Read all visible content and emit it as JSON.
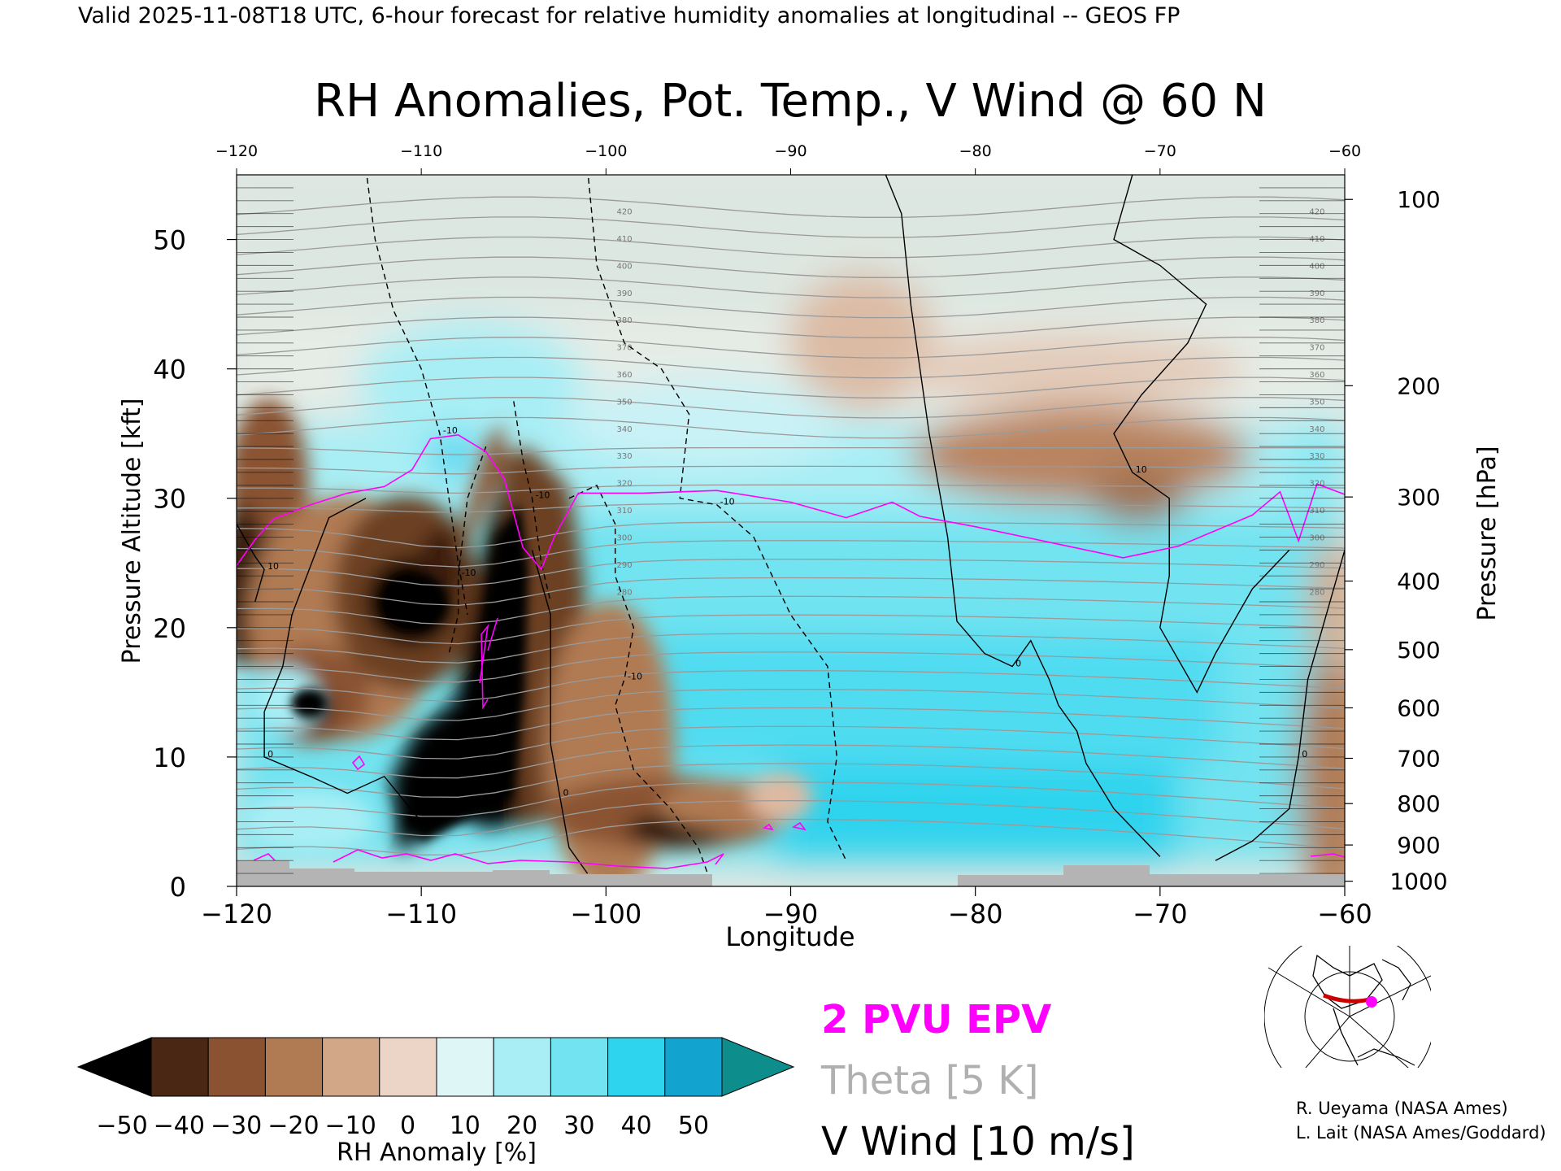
{
  "header_text": "Valid 2025-11-08T18 UTC, 6-hour forecast for relative humidity anomalies at longitudinal -- GEOS FP",
  "chart_data": {
    "type": "heatmap",
    "title": "RH Anomalies, Pot. Temp., V Wind @ 60 N",
    "xlabel": "Longitude",
    "ylabel": "Pressure Altitude [kft]",
    "y2label": "Pressure [hPa]",
    "xlim": [
      -120,
      -60
    ],
    "ylim": [
      0,
      55
    ],
    "x_ticks": [
      -120,
      -110,
      -100,
      -90,
      -80,
      -70,
      -60
    ],
    "y_ticks": [
      0,
      10,
      20,
      30,
      40,
      50
    ],
    "top_ticks": [
      -120,
      -110,
      -100,
      -90,
      -80,
      -70,
      -60
    ],
    "pressure_ticks": [
      {
        "hpa": "100",
        "kft": 53.1
      },
      {
        "hpa": "200",
        "kft": 38.7
      },
      {
        "hpa": "300",
        "kft": 30.1
      },
      {
        "hpa": "400",
        "kft": 23.6
      },
      {
        "hpa": "500",
        "kft": 18.3
      },
      {
        "hpa": "600",
        "kft": 13.8
      },
      {
        "hpa": "700",
        "kft": 9.9
      },
      {
        "hpa": "800",
        "kft": 6.4
      },
      {
        "hpa": "900",
        "kft": 3.2
      },
      {
        "hpa": "1000",
        "kft": 0.4
      }
    ],
    "theta_labels": [
      "420",
      "410",
      "400",
      "390",
      "380",
      "370",
      "360",
      "350",
      "340",
      "330",
      "320",
      "310",
      "300",
      "290",
      "280"
    ],
    "pv2_tropopause": [
      [
        -120,
        24.8
      ],
      [
        -119,
        26.8
      ],
      [
        -118,
        28.4
      ],
      [
        -116,
        29.5
      ],
      [
        -114,
        30.4
      ],
      [
        -112,
        30.9
      ],
      [
        -110.5,
        32.2
      ],
      [
        -109.5,
        34.6
      ],
      [
        -108,
        34.9
      ],
      [
        -106.5,
        33.6
      ],
      [
        -105.5,
        31.5
      ],
      [
        -104.5,
        26.2
      ],
      [
        -103.5,
        24.5
      ],
      [
        -102.8,
        27.0
      ],
      [
        -101.5,
        30.4
      ],
      [
        -98,
        30.4
      ],
      [
        -94,
        30.6
      ],
      [
        -90,
        29.7
      ],
      [
        -87,
        28.5
      ],
      [
        -84.5,
        29.7
      ],
      [
        -83,
        28.6
      ],
      [
        -80,
        27.8
      ],
      [
        -76,
        26.6
      ],
      [
        -72,
        25.4
      ],
      [
        -69,
        26.3
      ],
      [
        -65,
        28.7
      ],
      [
        -63.5,
        30.5
      ],
      [
        -62.5,
        26.7
      ],
      [
        -61.5,
        31.1
      ],
      [
        -60,
        30.3
      ]
    ],
    "vwind_contours": [
      {
        "value": "0",
        "style": "solid",
        "points": [
          [
            -85,
            55.5
          ],
          [
            -84,
            52
          ],
          [
            -83.5,
            45
          ],
          [
            -82.5,
            35
          ],
          [
            -81.5,
            27
          ],
          [
            -81,
            20.5
          ],
          [
            -79.5,
            18
          ],
          [
            -78,
            17
          ],
          [
            -77,
            19
          ],
          [
            -76,
            16
          ],
          [
            -75.5,
            14
          ],
          [
            -74.5,
            12
          ],
          [
            -74,
            9.5
          ],
          [
            -72.5,
            6
          ],
          [
            -70,
            2.3
          ]
        ]
      },
      {
        "value": "0",
        "style": "solid",
        "points": [
          [
            -104,
            26
          ],
          [
            -103,
            21
          ],
          [
            -103,
            11
          ],
          [
            -102.5,
            7
          ],
          [
            -102,
            3
          ],
          [
            -101,
            1
          ]
        ]
      },
      {
        "value": "0",
        "style": "solid",
        "points": [
          [
            -113,
            30
          ],
          [
            -115,
            28.5
          ],
          [
            -117,
            21
          ],
          [
            -117.5,
            17
          ],
          [
            -118.5,
            13.5
          ],
          [
            -118.5,
            10
          ],
          [
            -116,
            8.5
          ],
          [
            -114,
            7.2
          ],
          [
            -112,
            8.5
          ],
          [
            -110,
            5
          ]
        ]
      },
      {
        "value": "10",
        "style": "solid",
        "points": [
          [
            -71.5,
            55
          ],
          [
            -72.5,
            50
          ],
          [
            -70,
            48
          ],
          [
            -67.5,
            45
          ],
          [
            -68.5,
            42
          ],
          [
            -71,
            38
          ],
          [
            -72.5,
            35
          ],
          [
            -71.5,
            32
          ],
          [
            -69.5,
            30
          ],
          [
            -69.5,
            24
          ],
          [
            -70,
            20
          ],
          [
            -68,
            15
          ],
          [
            -67,
            18
          ],
          [
            -65,
            23
          ],
          [
            -63,
            26
          ]
        ]
      },
      {
        "value": "10",
        "style": "solid",
        "points": [
          [
            -120,
            28
          ],
          [
            -119,
            25.5
          ],
          [
            -118.5,
            24.5
          ],
          [
            -119,
            22
          ]
        ]
      },
      {
        "value": "0",
        "style": "solid",
        "points": [
          [
            -60,
            26
          ],
          [
            -61,
            21
          ],
          [
            -62,
            16
          ],
          [
            -62.5,
            10
          ],
          [
            -63,
            6
          ],
          [
            -65,
            3.5
          ],
          [
            -67,
            2
          ]
        ]
      },
      {
        "value": "-10",
        "style": "dashed",
        "points": [
          [
            -113,
            55.5
          ],
          [
            -112.5,
            50
          ],
          [
            -111.5,
            44.5
          ],
          [
            -110,
            40
          ],
          [
            -109,
            35
          ],
          [
            -108.5,
            30
          ],
          [
            -108,
            25
          ],
          [
            -107.5,
            21
          ]
        ]
      },
      {
        "value": "-10",
        "style": "dashed",
        "points": [
          [
            -101,
            55.5
          ],
          [
            -100.5,
            48
          ],
          [
            -99,
            42
          ],
          [
            -97,
            40
          ],
          [
            -95.5,
            36.5
          ],
          [
            -96,
            30
          ],
          [
            -94,
            29.5
          ],
          [
            -92,
            27
          ],
          [
            -90,
            21
          ],
          [
            -88,
            17
          ],
          [
            -87.5,
            10
          ],
          [
            -88,
            5
          ],
          [
            -87,
            2
          ]
        ]
      },
      {
        "value": "-10",
        "style": "dashed",
        "points": [
          [
            -106.5,
            34
          ],
          [
            -107.5,
            30
          ],
          [
            -108,
            24
          ],
          [
            -108,
            21
          ],
          [
            -108.5,
            18
          ]
        ]
      },
      {
        "value": "-10",
        "style": "dashed",
        "points": [
          [
            -105,
            37.5
          ],
          [
            -104.5,
            33
          ],
          [
            -104,
            30
          ],
          [
            -103.5,
            25
          ],
          [
            -103,
            22
          ]
        ]
      },
      {
        "value": "-10",
        "style": "dashed",
        "points": [
          [
            -102,
            30
          ],
          [
            -100.5,
            31
          ],
          [
            -99.5,
            28
          ],
          [
            -99.5,
            24
          ],
          [
            -98.5,
            20
          ],
          [
            -99,
            16
          ],
          [
            -99.5,
            14
          ],
          [
            -98.5,
            9
          ],
          [
            -96.5,
            6
          ],
          [
            -95,
            3
          ],
          [
            -94.5,
            1
          ]
        ]
      }
    ],
    "colorbar": {
      "label": "RH Anomaly [%]",
      "ticks": [
        "−50",
        "−40",
        "−30",
        "−20",
        "−10",
        "0",
        "10",
        "20",
        "30",
        "40",
        "50"
      ],
      "colors": [
        "#000000",
        "#4a2614",
        "#8a5230",
        "#b07a52",
        "#d2a787",
        "#ecd5c7",
        "#dff6f7",
        "#a9eef5",
        "#72e3f0",
        "#2ed3ee",
        "#13a3cf",
        "#0a6e9e"
      ],
      "under_color": "#000000",
      "over_color": "#0e8d8d"
    },
    "legend": [
      {
        "label": "2 PVU EPV",
        "color": "#ff00ff"
      },
      {
        "label": "Theta [5 K]",
        "color": "#b0b0b0"
      },
      {
        "label": "V Wind [10 m/s]",
        "color": "#000000"
      }
    ]
  },
  "credits": [
    "R. Ueyama (NASA Ames)",
    "L. Lait (NASA Ames/Goddard)"
  ]
}
